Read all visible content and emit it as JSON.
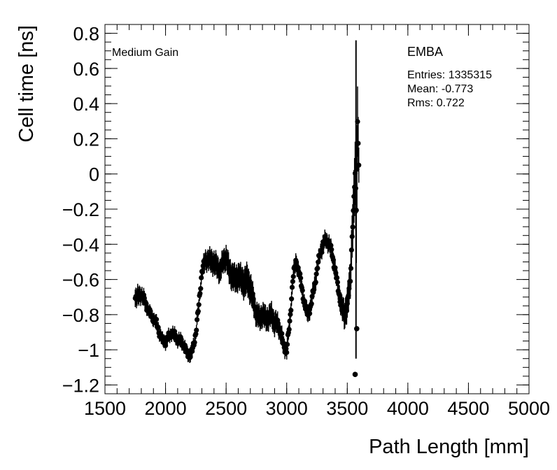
{
  "chart_data": {
    "type": "scatter",
    "title": "",
    "xlabel": "Path Length [mm]",
    "ylabel": "Cell time [ns]",
    "xlim": [
      1500,
      5000
    ],
    "ylim": [
      -1.25,
      0.85
    ],
    "x_ticks": [
      1500,
      2000,
      2500,
      3000,
      3500,
      4000,
      4500,
      5000
    ],
    "x_tick_labels": [
      "1500",
      "2000",
      "2500",
      "3000",
      "3500",
      "4000",
      "4500",
      "5000"
    ],
    "y_ticks": [
      -1.2,
      -1.0,
      -0.8,
      -0.6,
      -0.4,
      -0.2,
      0,
      0.2,
      0.4,
      0.6,
      0.8
    ],
    "y_tick_labels": [
      "−1.2",
      "−1",
      "−0.8",
      "−0.6",
      "−0.4",
      "−0.2",
      "0",
      "0.2",
      "0.4",
      "0.6",
      "0.8"
    ],
    "grid": false,
    "annotations": {
      "gain": "Medium Gain",
      "partition": "EMBA",
      "entries": "Entries: 1335315",
      "mean": "Mean: -0.773",
      "rms": "Rms: 0.722"
    },
    "series": [
      {
        "x": [
          1750,
          1775,
          1800,
          1825,
          1850,
          1875,
          1900,
          1925,
          1950,
          1975,
          2000,
          2025,
          2050,
          2075,
          2100,
          2125,
          2150,
          2175,
          2200,
          2225,
          2250,
          2275,
          2300,
          2325,
          2350,
          2375,
          2400,
          2425,
          2450,
          2475,
          2500,
          2525,
          2550,
          2575,
          2600,
          2625,
          2650,
          2675,
          2700,
          2725,
          2750,
          2775,
          2800,
          2825,
          2850,
          2875,
          2900,
          2925,
          2950,
          2975,
          3000,
          3025,
          3050,
          3075,
          3100,
          3125,
          3150,
          3175,
          3200,
          3225,
          3250,
          3275,
          3300,
          3325,
          3350,
          3375,
          3400,
          3425,
          3450,
          3475,
          3500,
          3525,
          3540,
          3555,
          3565,
          3575,
          3585,
          3595
        ],
        "y": [
          -0.7,
          -0.7,
          -0.68,
          -0.72,
          -0.76,
          -0.8,
          -0.82,
          -0.85,
          -0.9,
          -0.95,
          -0.95,
          -0.93,
          -0.9,
          -0.92,
          -0.94,
          -0.95,
          -0.97,
          -1.02,
          -1.03,
          -1.0,
          -0.9,
          -0.75,
          -0.55,
          -0.5,
          -0.48,
          -0.5,
          -0.5,
          -0.53,
          -0.55,
          -0.5,
          -0.47,
          -0.55,
          -0.58,
          -0.6,
          -0.58,
          -0.6,
          -0.62,
          -0.6,
          -0.65,
          -0.72,
          -0.8,
          -0.82,
          -0.8,
          -0.82,
          -0.82,
          -0.8,
          -0.85,
          -0.85,
          -0.9,
          -0.98,
          -1.0,
          -0.85,
          -0.6,
          -0.5,
          -0.55,
          -0.65,
          -0.75,
          -0.8,
          -0.75,
          -0.65,
          -0.55,
          -0.45,
          -0.4,
          -0.37,
          -0.4,
          -0.45,
          -0.55,
          -0.65,
          -0.75,
          -0.8,
          -0.75,
          -0.6,
          -0.35,
          -0.15,
          0.0,
          -0.2,
          0.3,
          0.05
        ],
        "err": [
          0.05,
          0.05,
          0.04,
          0.04,
          0.03,
          0.03,
          0.03,
          0.03,
          0.03,
          0.03,
          0.03,
          0.03,
          0.03,
          0.03,
          0.03,
          0.03,
          0.03,
          0.03,
          0.03,
          0.03,
          0.03,
          0.03,
          0.04,
          0.05,
          0.05,
          0.06,
          0.06,
          0.06,
          0.06,
          0.06,
          0.06,
          0.07,
          0.07,
          0.07,
          0.07,
          0.07,
          0.08,
          0.08,
          0.08,
          0.07,
          0.06,
          0.06,
          0.06,
          0.06,
          0.06,
          0.06,
          0.06,
          0.05,
          0.05,
          0.04,
          0.04,
          0.04,
          0.04,
          0.04,
          0.04,
          0.04,
          0.04,
          0.04,
          0.04,
          0.04,
          0.04,
          0.04,
          0.04,
          0.04,
          0.04,
          0.04,
          0.04,
          0.05,
          0.06,
          0.07,
          0.08,
          0.1,
          0.12,
          0.15,
          0.18,
          0.3,
          0.2,
          0.1
        ]
      },
      {
        "x": [
          3565,
          3578
        ],
        "y": [
          -1.14,
          -0.88
        ],
        "err": [
          0.0,
          0.0
        ]
      }
    ],
    "spike": {
      "x": 3572,
      "y_low": -1.05,
      "y_high": 0.76
    }
  }
}
